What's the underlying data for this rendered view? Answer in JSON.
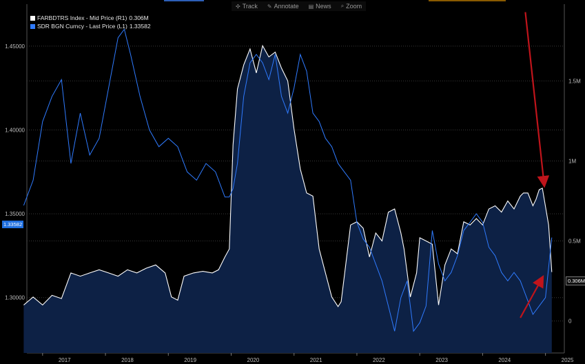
{
  "toolbar": {
    "items": [
      {
        "icon": "track-icon",
        "glyph": "✣",
        "label": "Track"
      },
      {
        "icon": "annotate-icon",
        "glyph": "✎",
        "label": "Annotate"
      },
      {
        "icon": "news-icon",
        "glyph": "▤",
        "label": "News"
      },
      {
        "icon": "zoom-icon",
        "glyph": "⌕",
        "label": "Zoom"
      }
    ]
  },
  "colors": {
    "white_series": "#ffffff",
    "blue_series": "#2f7bff",
    "area_fill": "#0d2145",
    "arrow": "#c0141b",
    "grid": "#3a3a3a"
  },
  "chart_data": {
    "type": "line",
    "series": [
      {
        "name": "FARBDTRS Index - Mid Price (R1)",
        "legend_value": "0.306M",
        "axis": "right",
        "style": "area",
        "x": [
          2016.7,
          2016.85,
          2017.0,
          2017.15,
          2017.3,
          2017.45,
          2017.6,
          2017.75,
          2017.9,
          2018.05,
          2018.2,
          2018.35,
          2018.5,
          2018.65,
          2018.8,
          2018.95,
          2019.05,
          2019.15,
          2019.25,
          2019.4,
          2019.55,
          2019.7,
          2019.8,
          2019.9,
          2019.97,
          2020.03,
          2020.1,
          2020.2,
          2020.3,
          2020.4,
          2020.5,
          2020.6,
          2020.7,
          2020.8,
          2020.9,
          2021.0,
          2021.1,
          2021.2,
          2021.3,
          2021.4,
          2021.5,
          2021.6,
          2021.7,
          2021.75,
          2021.8,
          2021.9,
          2022.0,
          2022.1,
          2022.2,
          2022.3,
          2022.4,
          2022.5,
          2022.6,
          2022.7,
          2022.75,
          2022.85,
          2022.95,
          2023.0,
          2023.1,
          2023.2,
          2023.3,
          2023.4,
          2023.5,
          2023.6,
          2023.7,
          2023.8,
          2023.9,
          2024.0,
          2024.1,
          2024.2,
          2024.3,
          2024.4,
          2024.5,
          2024.6,
          2024.65,
          2024.72,
          2024.8,
          2024.85,
          2024.9,
          2024.95,
          2025.05,
          2025.1
        ],
        "values": [
          0.1,
          0.15,
          0.1,
          0.16,
          0.14,
          0.3,
          0.28,
          0.3,
          0.32,
          0.3,
          0.28,
          0.32,
          0.3,
          0.33,
          0.35,
          0.3,
          0.15,
          0.13,
          0.28,
          0.3,
          0.31,
          0.3,
          0.32,
          0.4,
          0.45,
          1.1,
          1.45,
          1.6,
          1.7,
          1.55,
          1.72,
          1.65,
          1.68,
          1.58,
          1.5,
          1.2,
          0.95,
          0.8,
          0.78,
          0.45,
          0.3,
          0.15,
          0.09,
          0.12,
          0.28,
          0.6,
          0.62,
          0.58,
          0.4,
          0.55,
          0.5,
          0.68,
          0.7,
          0.55,
          0.45,
          0.15,
          0.3,
          0.52,
          0.5,
          0.48,
          0.1,
          0.35,
          0.45,
          0.42,
          0.62,
          0.6,
          0.64,
          0.6,
          0.7,
          0.72,
          0.68,
          0.75,
          0.7,
          0.78,
          0.8,
          0.8,
          0.72,
          0.76,
          0.82,
          0.83,
          0.6,
          0.306
        ]
      },
      {
        "name": "SDR BGN Curncy - Last Price (L1)",
        "legend_value": "1.33582",
        "axis": "left",
        "style": "line",
        "x": [
          2016.7,
          2016.85,
          2017.0,
          2017.15,
          2017.3,
          2017.45,
          2017.6,
          2017.75,
          2017.9,
          2018.05,
          2018.2,
          2018.3,
          2018.4,
          2018.55,
          2018.7,
          2018.85,
          2019.0,
          2019.15,
          2019.3,
          2019.45,
          2019.6,
          2019.75,
          2019.9,
          2019.97,
          2020.03,
          2020.1,
          2020.2,
          2020.3,
          2020.4,
          2020.5,
          2020.6,
          2020.7,
          2020.8,
          2020.9,
          2021.0,
          2021.1,
          2021.2,
          2021.3,
          2021.4,
          2021.5,
          2021.6,
          2021.7,
          2021.8,
          2021.9,
          2022.0,
          2022.1,
          2022.2,
          2022.3,
          2022.4,
          2022.5,
          2022.6,
          2022.7,
          2022.8,
          2022.9,
          2023.0,
          2023.1,
          2023.2,
          2023.3,
          2023.4,
          2023.5,
          2023.6,
          2023.7,
          2023.8,
          2023.9,
          2024.0,
          2024.1,
          2024.2,
          2024.3,
          2024.4,
          2024.5,
          2024.6,
          2024.7,
          2024.8,
          2024.9,
          2025.0,
          2025.1
        ],
        "values": [
          1.355,
          1.37,
          1.405,
          1.42,
          1.43,
          1.38,
          1.41,
          1.385,
          1.395,
          1.425,
          1.455,
          1.46,
          1.445,
          1.42,
          1.4,
          1.39,
          1.395,
          1.39,
          1.375,
          1.37,
          1.38,
          1.375,
          1.36,
          1.36,
          1.365,
          1.38,
          1.42,
          1.44,
          1.445,
          1.44,
          1.43,
          1.445,
          1.42,
          1.41,
          1.425,
          1.445,
          1.435,
          1.41,
          1.405,
          1.395,
          1.39,
          1.38,
          1.375,
          1.37,
          1.345,
          1.335,
          1.33,
          1.32,
          1.31,
          1.295,
          1.28,
          1.3,
          1.31,
          1.28,
          1.285,
          1.295,
          1.34,
          1.32,
          1.31,
          1.315,
          1.325,
          1.34,
          1.345,
          1.35,
          1.345,
          1.33,
          1.325,
          1.315,
          1.31,
          1.315,
          1.31,
          1.3,
          1.29,
          1.295,
          1.3,
          1.33582
        ]
      }
    ],
    "x_ticks": [
      "2017",
      "2018",
      "2019",
      "2020",
      "2021",
      "2022",
      "2023",
      "2024",
      "2025"
    ],
    "xlim": [
      2016.75,
      2025.3
    ],
    "left_axis": {
      "ticks": [
        "1.30000",
        "1.35000",
        "1.40000",
        "1.45000"
      ],
      "tick_values": [
        1.3,
        1.35,
        1.4,
        1.45
      ],
      "ylim": [
        1.267,
        1.475
      ],
      "last_label": "1.33582"
    },
    "right_axis": {
      "ticks": [
        "0",
        "0.5M",
        "1M",
        "1.5M"
      ],
      "tick_values": [
        0,
        0.5,
        1.0,
        1.5
      ],
      "ylim": [
        -0.2,
        1.98
      ],
      "last_label": "0.306M"
    },
    "grid": true,
    "legend_position": "top-left",
    "annotations": [
      {
        "type": "arrow",
        "from": [
          2024.68,
          1.93
        ],
        "to": [
          2024.98,
          0.85
        ],
        "axis": "right",
        "color": "#c0141b"
      },
      {
        "type": "arrow",
        "from": [
          2024.6,
          0.02
        ],
        "to": [
          2024.95,
          0.27
        ],
        "axis": "right",
        "color": "#c0141b"
      }
    ]
  }
}
